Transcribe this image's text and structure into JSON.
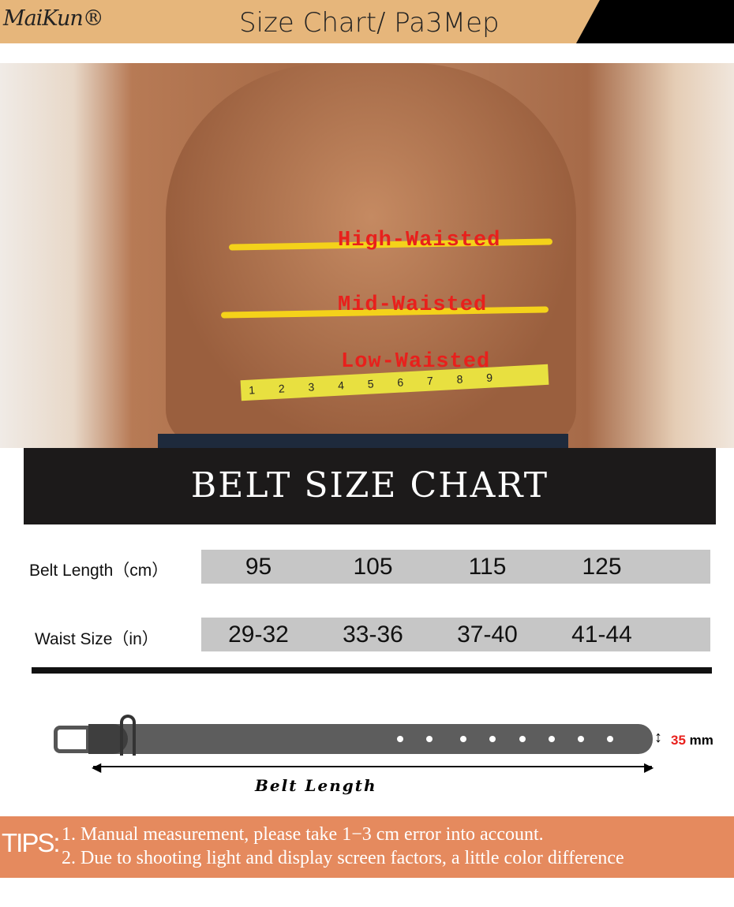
{
  "header": {
    "brand": "MaiKun®",
    "title": "Size Chart/ Pa3Mep"
  },
  "photo": {
    "labels": [
      "High-Waisted",
      "Mid-Waisted",
      "Low-Waisted"
    ],
    "tape_numbers": "1 2 3 4 5 6 7 8 9"
  },
  "chart": {
    "title": "BELT SIZE CHART",
    "rows": [
      {
        "label": "Belt Length（cm）",
        "values": [
          "95",
          "105",
          "115",
          "125"
        ]
      },
      {
        "label": "Waist Size（in）",
        "values": [
          "29-32",
          "33-36",
          "37-40",
          "41-44"
        ]
      }
    ]
  },
  "belt": {
    "width_value": "35",
    "width_unit": "mm",
    "length_label": "Belt Length"
  },
  "tips": {
    "label": "TIPS:",
    "lines": [
      "1. Manual measurement, please take 1−3 cm error into account.",
      "2. Due to shooting light and display screen factors, a little color difference"
    ]
  },
  "colors": {
    "header": "#e6b67b",
    "tips": "#e58a5e",
    "waistline": "#f4d21a",
    "label": "#e8201c"
  }
}
